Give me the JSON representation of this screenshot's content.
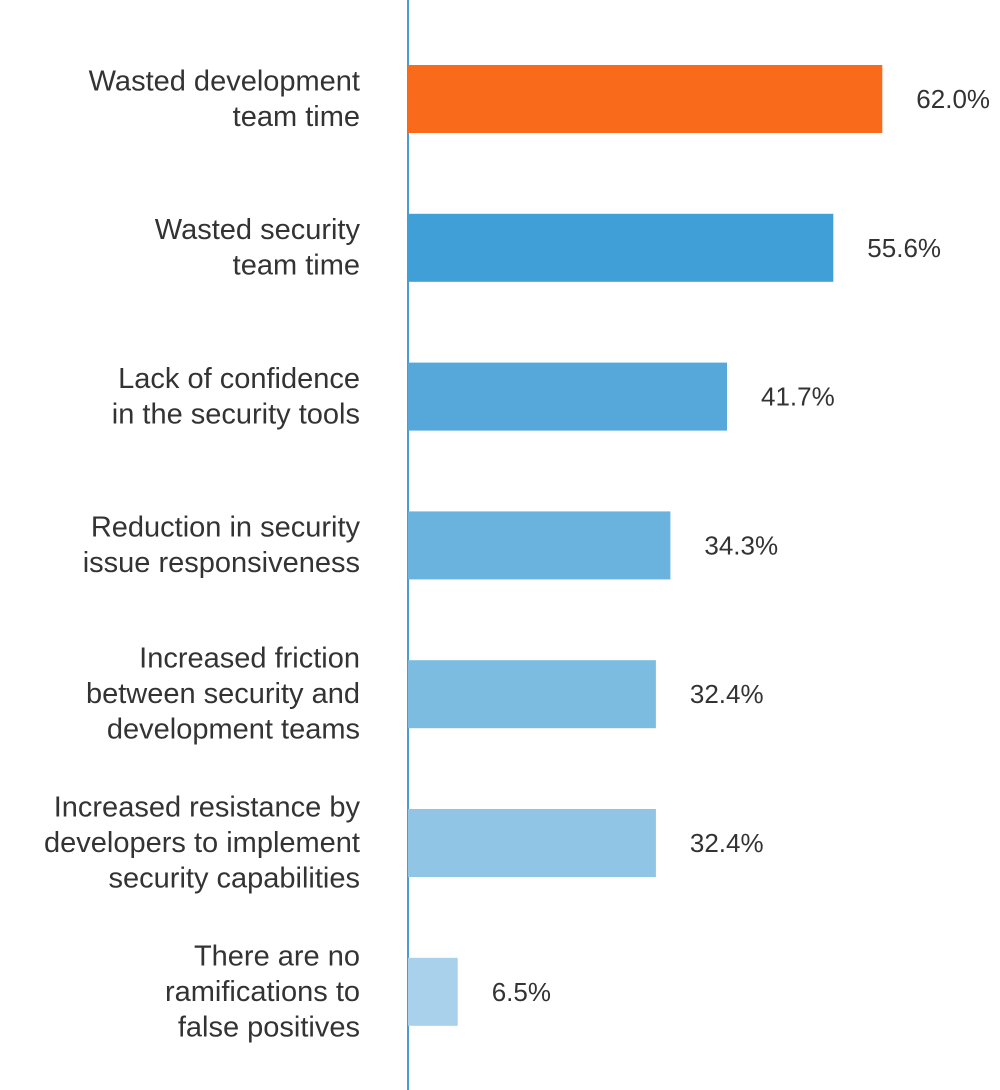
{
  "chart_data": {
    "type": "bar",
    "orientation": "horizontal",
    "title": "",
    "xlabel": "",
    "ylabel": "",
    "xlim": [
      0,
      100
    ],
    "grid": false,
    "legend": "none",
    "categories": [
      [
        "Wasted development",
        "team time"
      ],
      [
        "Wasted security",
        "team time"
      ],
      [
        "Lack of confidence",
        "in the security tools"
      ],
      [
        "Reduction in security",
        "issue responsiveness"
      ],
      [
        "Increased friction",
        "between security and",
        "development teams"
      ],
      [
        "Increased resistance by",
        "developers to implement",
        "security capabilities"
      ],
      [
        "There are no",
        "ramifications to",
        "false positives"
      ]
    ],
    "values": [
      62.0,
      55.6,
      41.7,
      34.3,
      32.4,
      32.4,
      6.5
    ],
    "value_labels": [
      "62.0%",
      "55.6%",
      "41.7%",
      "34.3%",
      "32.4%",
      "32.4%",
      "6.5%"
    ],
    "colors": [
      "#f96b1b",
      "#3f9fd6",
      "#56a8db",
      "#6ab3de",
      "#7dbce1",
      "#90c5e6",
      "#a9d1ec"
    ],
    "axis_color": "#4a9ad3"
  }
}
